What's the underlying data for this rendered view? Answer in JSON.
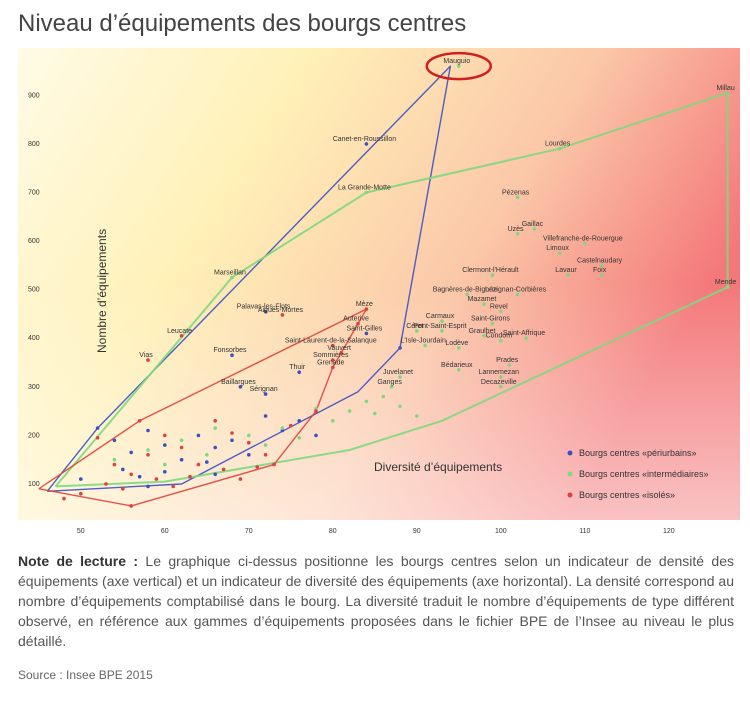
{
  "title": "Niveau d’équipements des bourgs centres",
  "note": {
    "label": "Note de lecture :",
    "text": " Le graphique ci-dessus positionne les bourgs centres selon un indicateur de densité des équipements (axe vertical) et un indicateur de diversité des équipements (axe horizontal). La densité correspond au nombre d’équipements comptabilisé dans le bourg. La diversité traduit le nombre d’équipements de type différent observé, en référence aux gammes d’équipements proposées dans le fichier BPE de l’Insee au niveau le plus détaillé."
  },
  "source": "Source : Insee BPE 2015",
  "chart_data": {
    "type": "scatter",
    "xlabel": "Diversité d’équipements",
    "ylabel": "Nombre d’équipements",
    "xlim": [
      43,
      128
    ],
    "ylim": [
      30,
      985
    ],
    "xticks": [
      50,
      60,
      70,
      80,
      90,
      100,
      110,
      120
    ],
    "yticks": [
      100,
      200,
      300,
      400,
      500,
      600,
      700,
      800,
      900
    ],
    "colors": {
      "periurbains": "#3b4fc4",
      "intermediaires": "#7ed87e",
      "isoles": "#e0403a"
    },
    "series": [
      {
        "key": "periurbains",
        "name": "Bourgs centres «périurbains»",
        "color": "#3b4fc4",
        "hull": [
          [
            46,
            85
          ],
          [
            52,
            215
          ],
          [
            94,
            960
          ],
          [
            88,
            380
          ],
          [
            83,
            290
          ],
          [
            62,
            100
          ],
          [
            46,
            85
          ]
        ],
        "points": [
          {
            "x": 84,
            "y": 800,
            "label": "Canet-en-Roussillon"
          },
          {
            "x": 72,
            "y": 455,
            "label": "Palavas-les-Flots"
          },
          {
            "x": 84,
            "y": 410,
            "label": "Saint-Gilles"
          },
          {
            "x": 68,
            "y": 365,
            "label": "Fonsorbes"
          },
          {
            "x": 69,
            "y": 300,
            "label": "Baillargues"
          },
          {
            "x": 72,
            "y": 285,
            "label": "Sérignan"
          },
          {
            "x": 76,
            "y": 330,
            "label": "Thuir"
          },
          {
            "x": 88,
            "y": 380,
            "label": ""
          },
          {
            "x": 52,
            "y": 215,
            "label": ""
          },
          {
            "x": 54,
            "y": 190,
            "label": ""
          },
          {
            "x": 56,
            "y": 165,
            "label": ""
          },
          {
            "x": 58,
            "y": 210,
            "label": ""
          },
          {
            "x": 60,
            "y": 180,
            "label": ""
          },
          {
            "x": 62,
            "y": 150,
            "label": ""
          },
          {
            "x": 64,
            "y": 200,
            "label": ""
          },
          {
            "x": 66,
            "y": 175,
            "label": ""
          },
          {
            "x": 68,
            "y": 190,
            "label": ""
          },
          {
            "x": 70,
            "y": 160,
            "label": ""
          },
          {
            "x": 72,
            "y": 240,
            "label": ""
          },
          {
            "x": 74,
            "y": 210,
            "label": ""
          },
          {
            "x": 76,
            "y": 230,
            "label": ""
          },
          {
            "x": 78,
            "y": 200,
            "label": ""
          },
          {
            "x": 50,
            "y": 110,
            "label": ""
          },
          {
            "x": 55,
            "y": 130,
            "label": ""
          },
          {
            "x": 57,
            "y": 115,
            "label": ""
          },
          {
            "x": 60,
            "y": 125,
            "label": ""
          },
          {
            "x": 65,
            "y": 145,
            "label": ""
          },
          {
            "x": 58,
            "y": 95,
            "label": ""
          },
          {
            "x": 66,
            "y": 120,
            "label": ""
          }
        ]
      },
      {
        "key": "intermediaires",
        "name": "Bourgs centres «intermédiaires»",
        "color": "#7ed87e",
        "hull": [
          [
            47,
            95
          ],
          [
            68,
            525
          ],
          [
            84,
            700
          ],
          [
            107,
            790
          ],
          [
            127,
            905
          ],
          [
            127,
            505
          ],
          [
            93,
            230
          ],
          [
            82,
            170
          ],
          [
            60,
            105
          ],
          [
            47,
            95
          ]
        ],
        "points": [
          {
            "x": 95,
            "y": 960,
            "label": "Mauguio"
          },
          {
            "x": 127,
            "y": 905,
            "label": "Millau"
          },
          {
            "x": 107,
            "y": 790,
            "label": "Lourdes"
          },
          {
            "x": 84,
            "y": 700,
            "label": "La Grande-Motte"
          },
          {
            "x": 102,
            "y": 690,
            "label": "Pézenas"
          },
          {
            "x": 104,
            "y": 625,
            "label": "Gaillac"
          },
          {
            "x": 102,
            "y": 615,
            "label": "Uzès"
          },
          {
            "x": 110,
            "y": 595,
            "label": "Villefranche-de-Rouergue"
          },
          {
            "x": 107,
            "y": 575,
            "label": "Limoux"
          },
          {
            "x": 112,
            "y": 550,
            "label": "Castelnaudary"
          },
          {
            "x": 68,
            "y": 525,
            "label": "Marseillan"
          },
          {
            "x": 99,
            "y": 530,
            "label": "Clermont-l'Hérault"
          },
          {
            "x": 108,
            "y": 530,
            "label": "Lavaur"
          },
          {
            "x": 112,
            "y": 530,
            "label": "Foix"
          },
          {
            "x": 127,
            "y": 505,
            "label": "Mende"
          },
          {
            "x": 96,
            "y": 490,
            "label": "Bagnères-de-Bigorre"
          },
          {
            "x": 102,
            "y": 490,
            "label": "Lézignan-Corbières"
          },
          {
            "x": 98,
            "y": 470,
            "label": "Mazamet"
          },
          {
            "x": 100,
            "y": 455,
            "label": "Revel"
          },
          {
            "x": 93,
            "y": 435,
            "label": "Carmaux"
          },
          {
            "x": 99,
            "y": 430,
            "label": "Saint-Girons"
          },
          {
            "x": 90,
            "y": 415,
            "label": "Céret"
          },
          {
            "x": 93,
            "y": 415,
            "label": "Pont-Saint-Esprit"
          },
          {
            "x": 98,
            "y": 405,
            "label": "Graulhet"
          },
          {
            "x": 103,
            "y": 400,
            "label": "Saint-Affrique"
          },
          {
            "x": 100,
            "y": 395,
            "label": "Condom"
          },
          {
            "x": 91,
            "y": 385,
            "label": "L'Isle-Jourdain"
          },
          {
            "x": 95,
            "y": 380,
            "label": "Lodève"
          },
          {
            "x": 101,
            "y": 345,
            "label": "Prades"
          },
          {
            "x": 95,
            "y": 335,
            "label": "Bédarieux"
          },
          {
            "x": 100,
            "y": 320,
            "label": "Lannemezan"
          },
          {
            "x": 100,
            "y": 300,
            "label": "Decazeville"
          },
          {
            "x": 87,
            "y": 300,
            "label": "Ganges"
          },
          {
            "x": 88,
            "y": 320,
            "label": "Juvelanet"
          },
          {
            "x": 82,
            "y": 250,
            "label": ""
          },
          {
            "x": 85,
            "y": 245,
            "label": ""
          },
          {
            "x": 88,
            "y": 260,
            "label": ""
          },
          {
            "x": 90,
            "y": 240,
            "label": ""
          },
          {
            "x": 80,
            "y": 230,
            "label": ""
          },
          {
            "x": 78,
            "y": 255,
            "label": ""
          },
          {
            "x": 74,
            "y": 215,
            "label": ""
          },
          {
            "x": 70,
            "y": 200,
            "label": ""
          },
          {
            "x": 66,
            "y": 215,
            "label": ""
          },
          {
            "x": 62,
            "y": 190,
            "label": ""
          },
          {
            "x": 58,
            "y": 170,
            "label": ""
          },
          {
            "x": 54,
            "y": 150,
            "label": ""
          },
          {
            "x": 60,
            "y": 140,
            "label": ""
          },
          {
            "x": 65,
            "y": 160,
            "label": ""
          },
          {
            "x": 72,
            "y": 180,
            "label": ""
          },
          {
            "x": 76,
            "y": 195,
            "label": ""
          },
          {
            "x": 84,
            "y": 270,
            "label": ""
          },
          {
            "x": 86,
            "y": 280,
            "label": ""
          }
        ]
      },
      {
        "key": "isoles",
        "name": "Bourgs centres «isolés»",
        "color": "#e0403a",
        "hull": [
          [
            45,
            90
          ],
          [
            57,
            230
          ],
          [
            84,
            460
          ],
          [
            80,
            340
          ],
          [
            78,
            250
          ],
          [
            73,
            140
          ],
          [
            56,
            55
          ],
          [
            45,
            90
          ]
        ],
        "points": [
          {
            "x": 84,
            "y": 460,
            "label": "Mèze"
          },
          {
            "x": 62,
            "y": 405,
            "label": "Leucate"
          },
          {
            "x": 58,
            "y": 355,
            "label": "Vias"
          },
          {
            "x": 74,
            "y": 448,
            "label": "Aigues-Mortes"
          },
          {
            "x": 83,
            "y": 430,
            "label": "Auterive"
          },
          {
            "x": 80,
            "y": 385,
            "label": "Saint-Laurent-de-la-Salanque"
          },
          {
            "x": 81,
            "y": 370,
            "label": "Vauvert"
          },
          {
            "x": 80,
            "y": 355,
            "label": "Sommières"
          },
          {
            "x": 80,
            "y": 340,
            "label": "Grenade"
          },
          {
            "x": 57,
            "y": 230,
            "label": ""
          },
          {
            "x": 56,
            "y": 55,
            "label": ""
          },
          {
            "x": 52,
            "y": 195,
            "label": ""
          },
          {
            "x": 54,
            "y": 140,
            "label": ""
          },
          {
            "x": 56,
            "y": 120,
            "label": ""
          },
          {
            "x": 58,
            "y": 160,
            "label": ""
          },
          {
            "x": 60,
            "y": 200,
            "label": ""
          },
          {
            "x": 62,
            "y": 175,
            "label": ""
          },
          {
            "x": 64,
            "y": 140,
            "label": ""
          },
          {
            "x": 66,
            "y": 230,
            "label": ""
          },
          {
            "x": 68,
            "y": 205,
            "label": ""
          },
          {
            "x": 70,
            "y": 185,
            "label": ""
          },
          {
            "x": 72,
            "y": 160,
            "label": ""
          },
          {
            "x": 75,
            "y": 220,
            "label": ""
          },
          {
            "x": 78,
            "y": 250,
            "label": ""
          },
          {
            "x": 53,
            "y": 100,
            "label": ""
          },
          {
            "x": 55,
            "y": 90,
            "label": ""
          },
          {
            "x": 59,
            "y": 110,
            "label": ""
          },
          {
            "x": 61,
            "y": 95,
            "label": ""
          },
          {
            "x": 63,
            "y": 115,
            "label": ""
          },
          {
            "x": 67,
            "y": 130,
            "label": ""
          },
          {
            "x": 69,
            "y": 110,
            "label": ""
          },
          {
            "x": 71,
            "y": 135,
            "label": ""
          },
          {
            "x": 73,
            "y": 140,
            "label": ""
          },
          {
            "x": 50,
            "y": 80,
            "label": ""
          },
          {
            "x": 48,
            "y": 70,
            "label": ""
          }
        ]
      }
    ],
    "highlight": {
      "label": "Mauguio",
      "x": 95,
      "y": 960,
      "color": "#d11f1f"
    },
    "legend": "bottom-right",
    "grid": false
  }
}
